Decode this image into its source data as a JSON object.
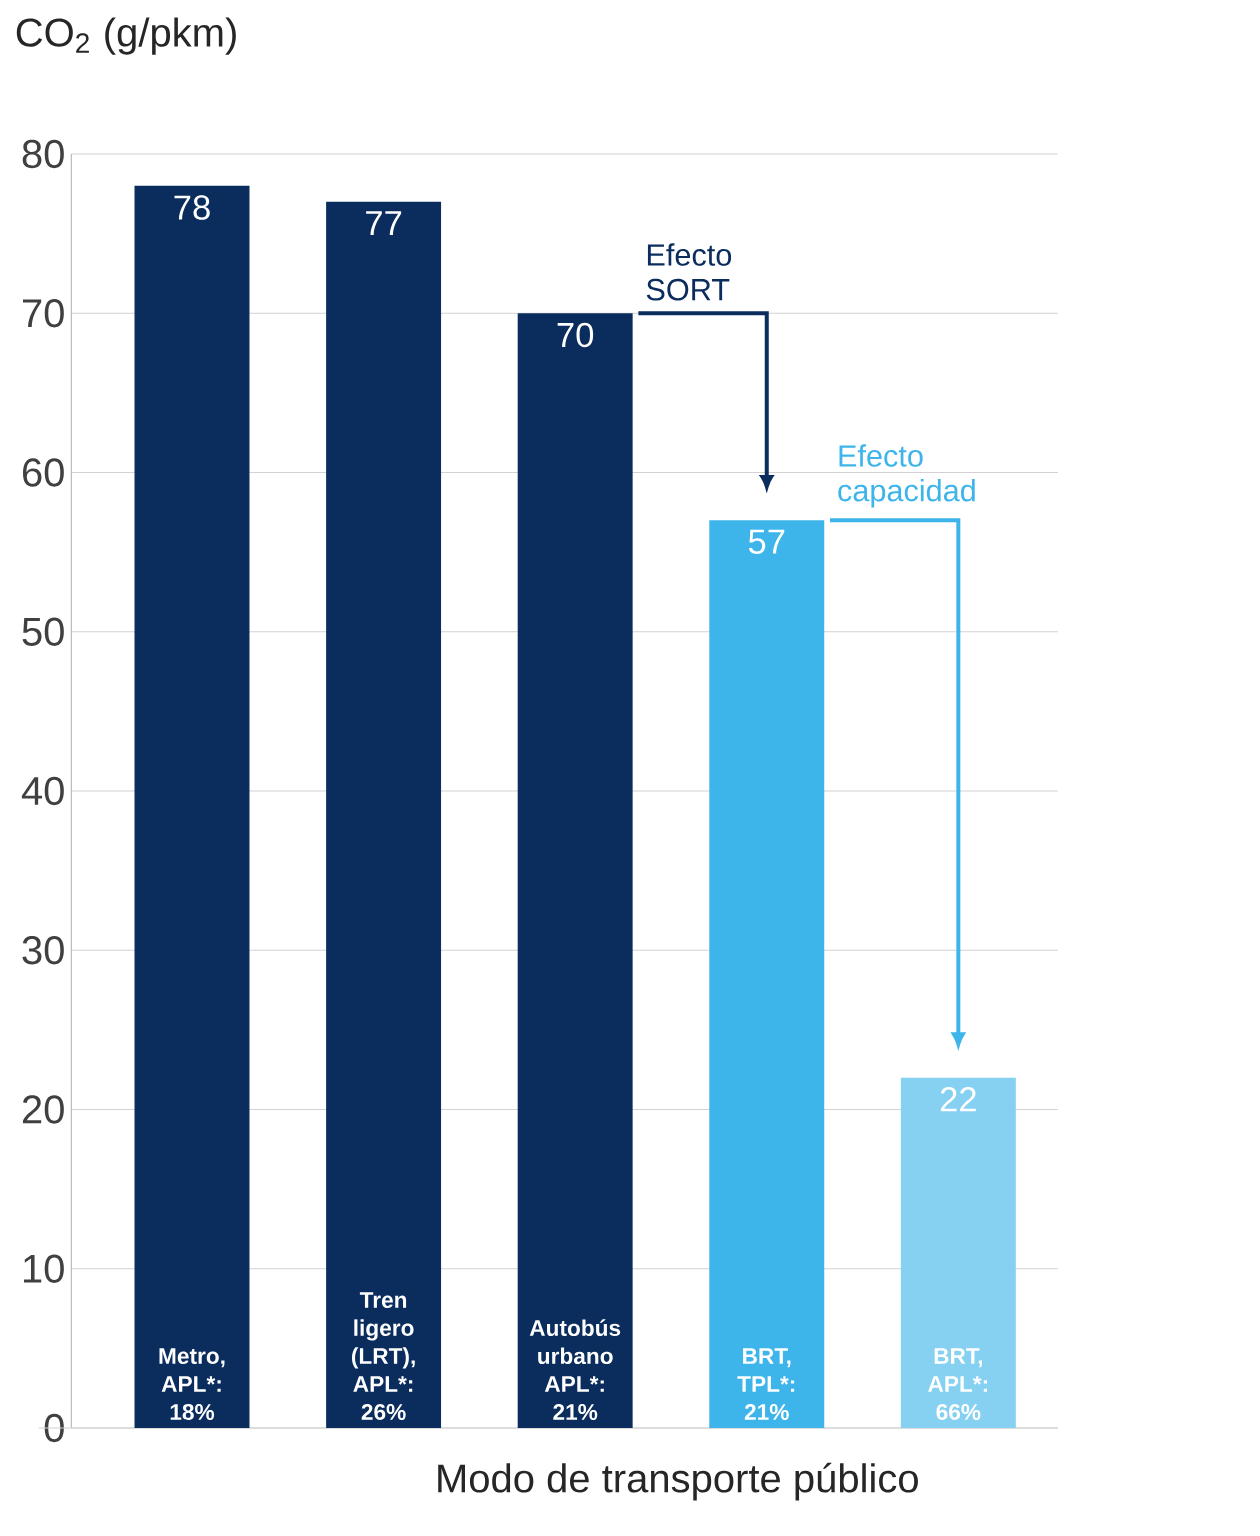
{
  "chart_data": {
    "type": "bar",
    "ylabel": "CO$_{2}$ (g/pkm)",
    "xlabel": "Modo de transporte público",
    "categories": [
      "Metro, APL*: 18%",
      "Tren ligero (LRT), APL*: 26%",
      "Autobús urbano APL*: 21%",
      "BRT, TPL*: 21%",
      "BRT, APL*: 66%"
    ],
    "values": [
      78,
      77,
      70,
      57,
      22
    ],
    "colors": [
      "#0b2d5e",
      "#0b2d5e",
      "#0b2d5e",
      "#3db5ea",
      "#86d0f2"
    ],
    "ylim": [
      0,
      80
    ],
    "yticks": [
      0,
      10,
      20,
      30,
      40,
      50,
      60,
      70,
      80
    ],
    "grid": "y",
    "data_labels": true,
    "annotations": [
      "Efecto SORT",
      "Efecto capacidad"
    ]
  }
}
